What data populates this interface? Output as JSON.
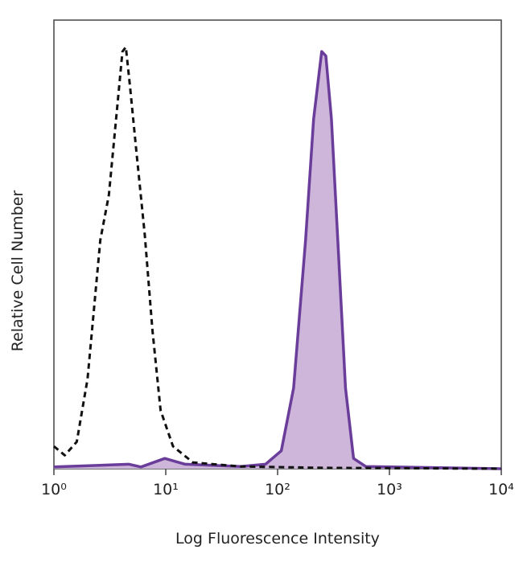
{
  "chart_data": {
    "type": "line",
    "xlabel": "Log Fluorescence Intensity",
    "ylabel": "Relative Cell Number",
    "xscale": "log",
    "xlim": [
      1,
      10000
    ],
    "xticks": [
      {
        "value": 1,
        "label": "10⁰"
      },
      {
        "value": 10,
        "label": "10¹"
      },
      {
        "value": 100,
        "label": "10²"
      },
      {
        "value": 1000,
        "label": "10³"
      },
      {
        "value": 10000,
        "label": "10⁴"
      }
    ],
    "ylim": [
      0,
      100
    ],
    "series": [
      {
        "color": "#111111",
        "dashed": true,
        "filled": false,
        "x": [
          1,
          1.25,
          1.6,
          2,
          2.6,
          3.1,
          3.6,
          4.1,
          4.4,
          4.8,
          5.5,
          6.5,
          7.6,
          9,
          11.6,
          17.5,
          47,
          250,
          10000
        ],
        "values": [
          5,
          3,
          6,
          20,
          51,
          61,
          78,
          93,
          94,
          85,
          70,
          52,
          31,
          13,
          5,
          1.4,
          0.5,
          0.2,
          0
        ]
      },
      {
        "color": "#6a3d9a",
        "dashed": false,
        "filled": true,
        "fill_color": "#cdb6d9",
        "x": [
          1,
          4.7,
          6,
          9.8,
          14.9,
          47,
          78,
          108,
          139,
          178,
          210,
          248,
          270,
          303,
          345,
          405,
          478,
          613,
          10000
        ],
        "values": [
          0.4,
          1,
          0.4,
          2.3,
          1,
          0.5,
          1,
          4,
          18,
          51,
          78,
          93,
          92,
          78,
          51,
          18,
          2.3,
          0.5,
          0
        ]
      }
    ]
  }
}
